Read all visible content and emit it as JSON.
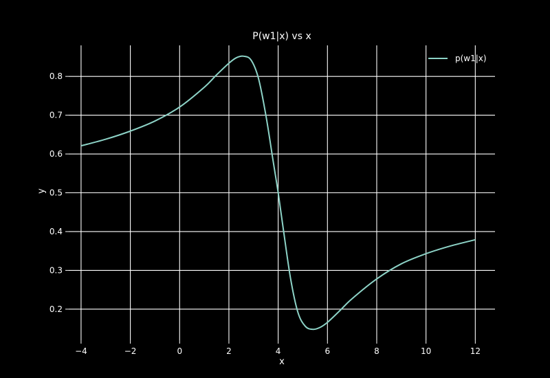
{
  "chart_data": {
    "type": "line",
    "title": "P(w1|x) vs x",
    "xlabel": "x",
    "ylabel": "y",
    "xlim": [
      -4.5,
      12.8
    ],
    "ylim": [
      0.12,
      0.88
    ],
    "xticks": [
      -4,
      -2,
      0,
      2,
      4,
      6,
      8,
      10,
      12
    ],
    "xtick_labels": [
      "−4",
      "−2",
      "0",
      "2",
      "4",
      "6",
      "8",
      "10",
      "12"
    ],
    "yticks": [
      0.2,
      0.3,
      0.4,
      0.5,
      0.6,
      0.7,
      0.8
    ],
    "ytick_labels": [
      "0.2",
      "0.3",
      "0.4",
      "0.5",
      "0.6",
      "0.7",
      "0.8"
    ],
    "grid": true,
    "legend_position": "top-right",
    "series": [
      {
        "name": "p(w1|x)",
        "color": "#8dd3c7",
        "x": [
          -4,
          -3,
          -2,
          -1,
          0,
          1,
          1.5,
          2,
          2.3,
          2.6,
          2.9,
          3.2,
          3.5,
          3.8,
          4.0,
          4.2,
          4.5,
          4.8,
          5.1,
          5.4,
          5.7,
          6.0,
          6.5,
          7,
          8,
          9,
          10,
          11,
          12
        ],
        "y": [
          0.621,
          0.638,
          0.659,
          0.685,
          0.721,
          0.772,
          0.804,
          0.834,
          0.848,
          0.852,
          0.842,
          0.795,
          0.7,
          0.58,
          0.5,
          0.41,
          0.28,
          0.192,
          0.156,
          0.148,
          0.153,
          0.166,
          0.196,
          0.227,
          0.278,
          0.317,
          0.343,
          0.363,
          0.379
        ]
      }
    ]
  }
}
